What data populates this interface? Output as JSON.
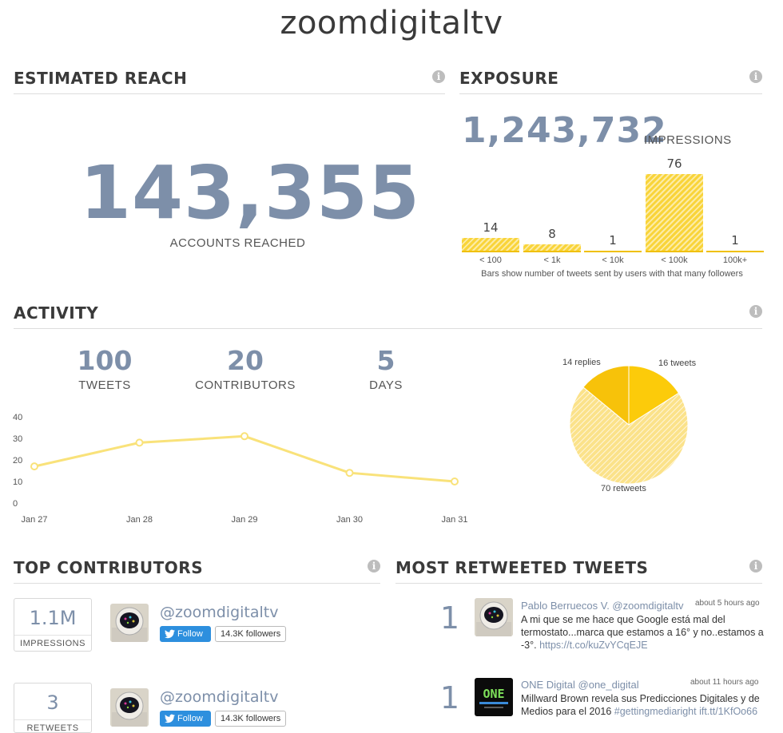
{
  "title": "zoomdigitaltv",
  "colors": {
    "accent": "#7d8fa9",
    "chart_yellow": "#f9d43a",
    "follow_blue": "#2d8fde"
  },
  "estimated_reach": {
    "heading": "ESTIMATED REACH",
    "value": "143,355",
    "label": "ACCOUNTS REACHED"
  },
  "exposure": {
    "heading": "EXPOSURE",
    "value": "1,243,732",
    "unit": "IMPRESSIONS",
    "caption": "Bars show number of tweets sent by users with that many followers"
  },
  "activity": {
    "heading": "ACTIVITY",
    "stats": [
      {
        "value": "100",
        "label": "TWEETS"
      },
      {
        "value": "20",
        "label": "CONTRIBUTORS"
      },
      {
        "value": "5",
        "label": "DAYS"
      }
    ]
  },
  "chart_data": [
    {
      "type": "bar",
      "categories": [
        "< 100",
        "< 1k",
        "< 10k",
        "< 100k",
        "100k+"
      ],
      "values": [
        14,
        8,
        1,
        76,
        1
      ],
      "data_labels": [
        "14",
        "8",
        "1",
        "76",
        "1"
      ],
      "title": "",
      "xlabel": "",
      "ylabel": "",
      "ylim": [
        0,
        76
      ],
      "grid": false
    },
    {
      "type": "line",
      "categories": [
        "Jan 27",
        "Jan 28",
        "Jan 29",
        "Jan 30",
        "Jan 31"
      ],
      "series": [
        {
          "values": [
            17,
            28,
            31,
            14,
            10
          ]
        }
      ],
      "y_ticks": [
        "0",
        "10",
        "20",
        "30",
        "40"
      ],
      "ylim": [
        0,
        40
      ],
      "title": "",
      "xlabel": "",
      "ylabel": "",
      "grid": false,
      "color": "#f9e27a"
    },
    {
      "type": "pie",
      "slices": [
        {
          "label": "16 tweets",
          "value": 16,
          "color": "#fccb0a"
        },
        {
          "label": "70 retweets",
          "value": 70,
          "color": "#fbe28a"
        },
        {
          "label": "14 replies",
          "value": 14,
          "color": "#f7c20a"
        }
      ],
      "title": ""
    }
  ],
  "top_contributors": {
    "heading": "TOP CONTRIBUTORS",
    "items": [
      {
        "metric_value": "1.1M",
        "metric_label": "IMPRESSIONS",
        "handle": "@zoomdigitaltv",
        "follow_label": "Follow",
        "followers": "14.3K followers",
        "avatar_icon": "astronaut-avatar-icon"
      },
      {
        "metric_value": "3",
        "metric_label": "RETWEETS",
        "handle": "@zoomdigitaltv",
        "follow_label": "Follow",
        "followers": "14.3K followers",
        "avatar_icon": "astronaut-avatar-icon"
      }
    ]
  },
  "most_retweeted": {
    "heading": "MOST RETWEETED TWEETS",
    "items": [
      {
        "rank": "1",
        "author": "Pablo Berruecos V. @zoomdigitaltv",
        "time": "about 5 hours ago",
        "text": "A mi que se me hace que Google está mal del termostato...marca que estamos a 16° y no..estamos a -3°. ",
        "link": "https://t.co/kuZvYCqEJE",
        "avatar_icon": "astronaut-avatar-icon"
      },
      {
        "rank": "1",
        "author": "ONE Digital @one_digital",
        "time": "about 11 hours ago",
        "text": "Millward Brown revela sus Predicciones Digitales y de Medios para el 2016 ",
        "link": "#gettingmediaright ift.tt/1KfOo66",
        "avatar_icon": "one-digital-logo-icon"
      }
    ]
  }
}
